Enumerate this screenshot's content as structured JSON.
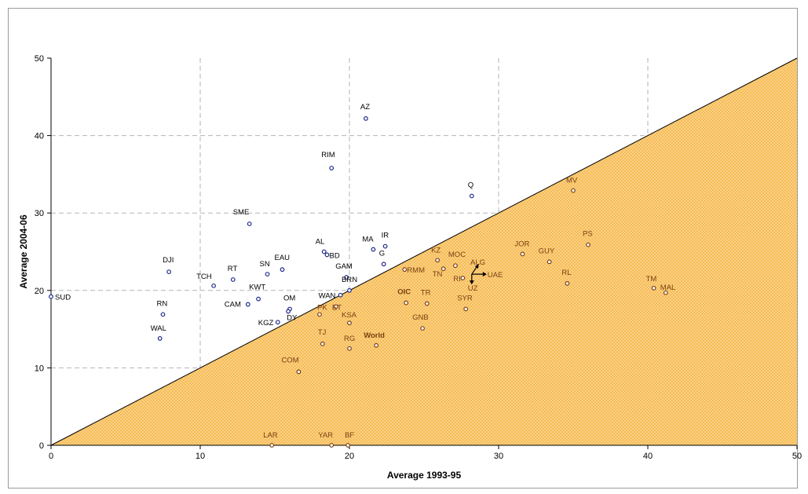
{
  "chart_data": {
    "type": "scatter",
    "title": "",
    "xlabel": "Average 1993-95",
    "ylabel": "Average 2004-06",
    "xlim": [
      0,
      50
    ],
    "ylim": [
      0,
      50
    ],
    "xticks": [
      "0",
      "10",
      "20",
      "30",
      "40",
      "50"
    ],
    "yticks": [
      "0",
      "10",
      "20",
      "30",
      "40",
      "50"
    ],
    "grid": true,
    "diagonal_line": true,
    "shaded_region": "below diagonal",
    "colors": {
      "above_marker": "#1f2a8a",
      "below_marker": "#7a3f12",
      "above_text": "#000000",
      "below_text": "#7a3f12",
      "fill": "#f7b84e",
      "grid": "#b3b3b3"
    },
    "points": [
      {
        "label": "SUD",
        "x": 0.0,
        "y": 19.2
      },
      {
        "label": "DJI",
        "x": 7.9,
        "y": 22.4
      },
      {
        "label": "RN",
        "x": 7.5,
        "y": 16.9
      },
      {
        "label": "WAL",
        "x": 7.3,
        "y": 13.8
      },
      {
        "label": "TCH",
        "x": 10.9,
        "y": 20.6
      },
      {
        "label": "RT",
        "x": 12.2,
        "y": 21.4
      },
      {
        "label": "CAM",
        "x": 13.2,
        "y": 18.2
      },
      {
        "label": "KWT",
        "x": 13.9,
        "y": 18.9
      },
      {
        "label": "SN",
        "x": 14.5,
        "y": 22.1
      },
      {
        "label": "EAU",
        "x": 15.5,
        "y": 22.7
      },
      {
        "label": "SME",
        "x": 13.3,
        "y": 28.6
      },
      {
        "label": "KGZ",
        "x": 15.2,
        "y": 15.9
      },
      {
        "label": "OM",
        "x": 16.0,
        "y": 17.6
      },
      {
        "label": "DY",
        "x": 15.9,
        "y": 17.3
      },
      {
        "label": "AL",
        "x": 18.3,
        "y": 25.0
      },
      {
        "label": "BD",
        "x": 18.5,
        "y": 24.6
      },
      {
        "label": "RIM",
        "x": 18.8,
        "y": 35.8
      },
      {
        "label": "AZ",
        "x": 21.1,
        "y": 42.2
      },
      {
        "label": "MA",
        "x": 21.6,
        "y": 25.3
      },
      {
        "label": "IR",
        "x": 22.4,
        "y": 25.7
      },
      {
        "label": "G",
        "x": 22.3,
        "y": 23.4
      },
      {
        "label": "GAM",
        "x": 19.8,
        "y": 21.7
      },
      {
        "label": "BRN",
        "x": 20.0,
        "y": 20.0
      },
      {
        "label": "WAN",
        "x": 19.4,
        "y": 19.4
      },
      {
        "label": "Q",
        "x": 28.2,
        "y": 32.2
      },
      {
        "label": "LAR",
        "x": 14.8,
        "y": 0.0
      },
      {
        "label": "YAR",
        "x": 18.8,
        "y": 0.0
      },
      {
        "label": "BF",
        "x": 19.9,
        "y": 0.0
      },
      {
        "label": "PK",
        "x": 18.0,
        "y": 16.9
      },
      {
        "label": "ET",
        "x": 19.1,
        "y": 17.9
      },
      {
        "label": "KSA",
        "x": 20.0,
        "y": 15.8
      },
      {
        "label": "TJ",
        "x": 18.2,
        "y": 13.1
      },
      {
        "label": "RG",
        "x": 20.0,
        "y": 12.5
      },
      {
        "label": "World",
        "x": 21.8,
        "y": 12.9
      },
      {
        "label": "COM",
        "x": 16.6,
        "y": 9.5
      },
      {
        "label": "OIC",
        "x": 23.8,
        "y": 18.4
      },
      {
        "label": "TR",
        "x": 25.2,
        "y": 18.3
      },
      {
        "label": "GNB",
        "x": 24.9,
        "y": 15.1
      },
      {
        "label": "RMM",
        "x": 23.7,
        "y": 22.7
      },
      {
        "label": "KZ",
        "x": 25.9,
        "y": 23.9
      },
      {
        "label": "TN",
        "x": 26.3,
        "y": 22.8
      },
      {
        "label": "MOC",
        "x": 27.1,
        "y": 23.2
      },
      {
        "label": "RI",
        "x": 27.6,
        "y": 21.6
      },
      {
        "label": "ALG",
        "x": 28.0,
        "y": 22.1
      },
      {
        "label": "UAE",
        "x": 28.2,
        "y": 22.2
      },
      {
        "label": "UZ",
        "x": 28.2,
        "y": 21.8
      },
      {
        "label": "SYR",
        "x": 27.8,
        "y": 17.6
      },
      {
        "label": "JOR",
        "x": 31.6,
        "y": 24.7
      },
      {
        "label": "GUY",
        "x": 33.4,
        "y": 23.7
      },
      {
        "label": "RL",
        "x": 34.6,
        "y": 20.9
      },
      {
        "label": "MV",
        "x": 35.0,
        "y": 32.9
      },
      {
        "label": "PS",
        "x": 36.0,
        "y": 25.9
      },
      {
        "label": "TM",
        "x": 40.4,
        "y": 20.3
      },
      {
        "label": "MAL",
        "x": 41.2,
        "y": 19.7
      }
    ]
  }
}
